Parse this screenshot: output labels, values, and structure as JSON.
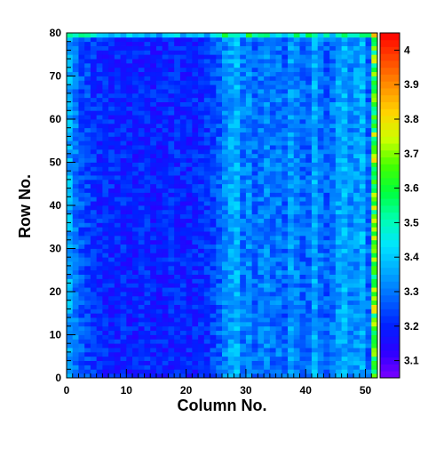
{
  "chart_data": {
    "type": "heatmap",
    "title": "",
    "xlabel": "Column No.",
    "ylabel": "Row No.",
    "xlim": [
      0,
      52
    ],
    "ylim": [
      0,
      80
    ],
    "n_columns": 52,
    "n_rows": 80,
    "x_ticks": [
      0,
      10,
      20,
      30,
      40,
      50
    ],
    "y_ticks": [
      0,
      10,
      20,
      30,
      40,
      50,
      60,
      70,
      80
    ],
    "colorbar": {
      "min": 3.05,
      "max": 4.05,
      "ticks": [
        3.1,
        3.2,
        3.3,
        3.4,
        3.5,
        3.6,
        3.7,
        3.8,
        3.9,
        4
      ],
      "tick_labels": [
        "3.1",
        "3.2",
        "3.3",
        "3.4",
        "3.5",
        "3.6",
        "3.7",
        "3.8",
        "3.9",
        "4"
      ],
      "palette": [
        "#7a00ff",
        "#2a00ff",
        "#0022ff",
        "#0066ff",
        "#00a8ff",
        "#00e5ff",
        "#00ffb0",
        "#00ff3c",
        "#44ff00",
        "#ccff00",
        "#ffd400",
        "#ff9000",
        "#ff4800",
        "#ff0000"
      ]
    },
    "column_profile_mean": [
      3.36,
      3.3,
      3.26,
      3.24,
      3.22,
      3.21,
      3.2,
      3.2,
      3.2,
      3.2,
      3.19,
      3.19,
      3.2,
      3.2,
      3.19,
      3.19,
      3.19,
      3.2,
      3.2,
      3.2,
      3.19,
      3.2,
      3.21,
      3.22,
      3.24,
      3.27,
      3.32,
      3.35,
      3.37,
      3.3,
      3.32,
      3.28,
      3.3,
      3.32,
      3.29,
      3.3,
      3.27,
      3.34,
      3.31,
      3.28,
      3.28,
      3.36,
      3.3,
      3.27,
      3.3,
      3.35,
      3.37,
      3.32,
      3.34,
      3.37,
      3.28,
      3.42
    ],
    "row_offset_note": ""
  }
}
